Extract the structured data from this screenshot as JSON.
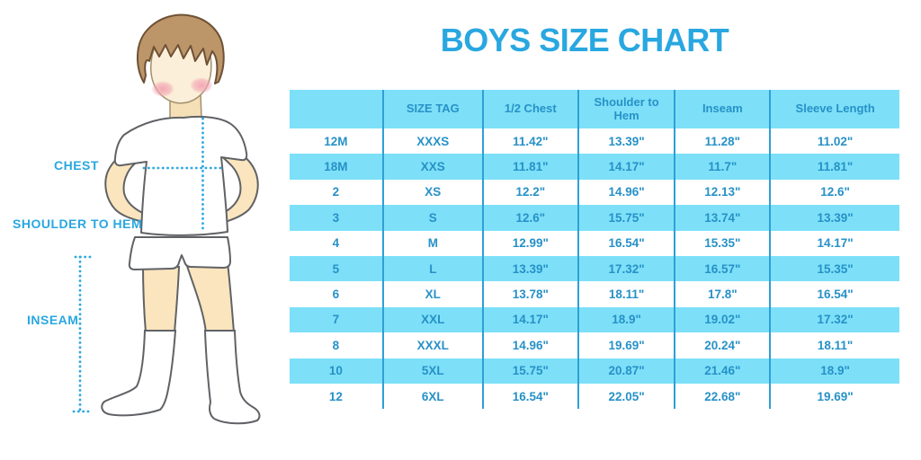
{
  "title": "BOYS SIZE CHART",
  "figure": {
    "description": "boy-measurement-illustration",
    "labels": {
      "chest": "CHEST",
      "shoulder_to_hem": "SHOULDER TO HEM",
      "inseam": "INSEAM"
    }
  },
  "colors": {
    "accent_blue": "#29A7E0",
    "table_text_blue": "#2791C7",
    "row_cyan": "#7DE0F8",
    "divider_blue": "#2F9FD6",
    "hair_brown": "#BC9569",
    "skin": "#FAE5BE"
  },
  "chart_data": {
    "type": "table",
    "title": "BOYS SIZE CHART",
    "columns": [
      "",
      "SIZE TAG",
      "1/2 Chest",
      "Shoulder to Hem",
      "Inseam",
      "Sleeve Length"
    ],
    "rows": [
      [
        "12M",
        "XXXS",
        "11.42\"",
        "13.39\"",
        "11.28\"",
        "11.02\""
      ],
      [
        "18M",
        "XXS",
        "11.81\"",
        "14.17\"",
        "11.7\"",
        "11.81\""
      ],
      [
        "2",
        "XS",
        "12.2\"",
        "14.96\"",
        "12.13\"",
        "12.6\""
      ],
      [
        "3",
        "S",
        "12.6\"",
        "15.75\"",
        "13.74\"",
        "13.39\""
      ],
      [
        "4",
        "M",
        "12.99\"",
        "16.54\"",
        "15.35\"",
        "14.17\""
      ],
      [
        "5",
        "L",
        "13.39\"",
        "17.32\"",
        "16.57\"",
        "15.35\""
      ],
      [
        "6",
        "XL",
        "13.78\"",
        "18.11\"",
        "17.8\"",
        "16.54\""
      ],
      [
        "7",
        "XXL",
        "14.17\"",
        "18.9\"",
        "19.02\"",
        "17.32\""
      ],
      [
        "8",
        "XXXL",
        "14.96\"",
        "19.69\"",
        "20.24\"",
        "18.11\""
      ],
      [
        "10",
        "5XL",
        "15.75\"",
        "20.87\"",
        "21.46\"",
        "18.9\""
      ],
      [
        "12",
        "6XL",
        "16.54\"",
        "22.05\"",
        "22.68\"",
        "19.69\""
      ]
    ]
  }
}
